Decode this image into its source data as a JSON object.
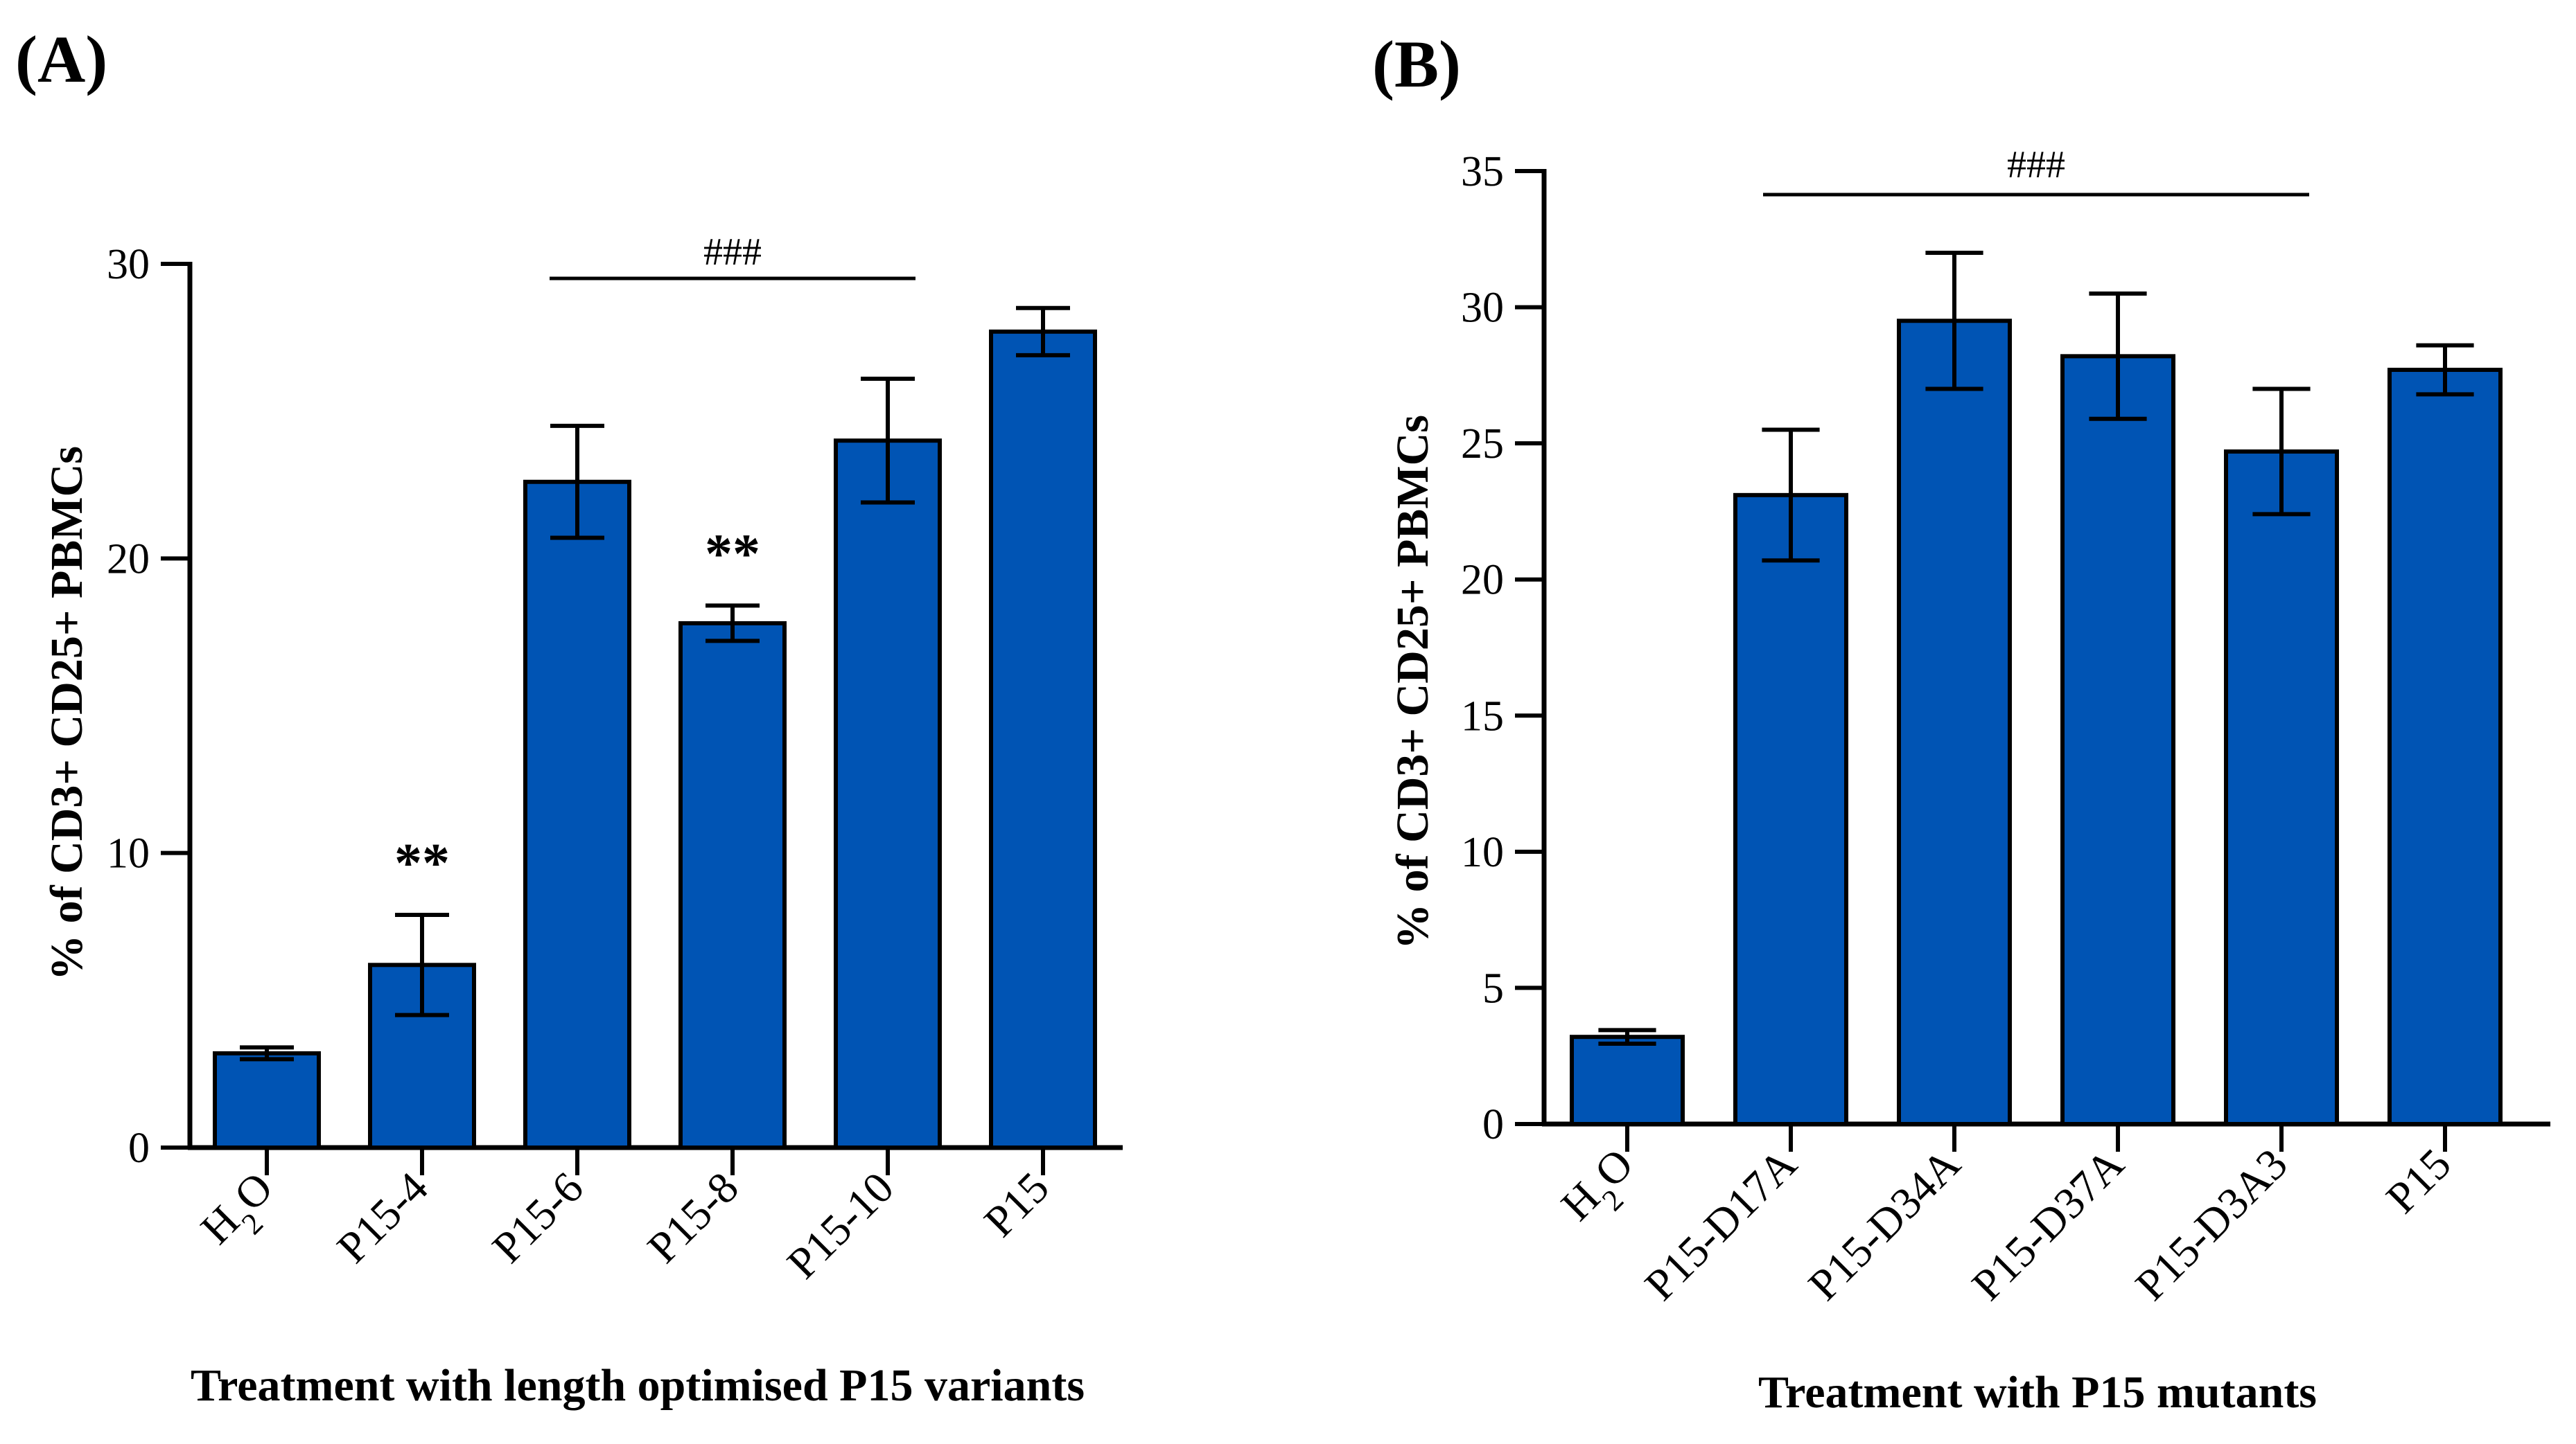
{
  "chart_data": [
    {
      "panel": "(A)",
      "type": "bar",
      "categories": [
        "H2O",
        "P15-4",
        "P15-6",
        "P15-8",
        "P15-10",
        "P15"
      ],
      "categories_sub": [
        [
          "H",
          "2",
          "O"
        ],
        null,
        null,
        null,
        null,
        null
      ],
      "values": [
        3.2,
        6.2,
        22.6,
        17.8,
        24.0,
        27.7
      ],
      "errors": [
        0.2,
        1.7,
        1.9,
        0.6,
        2.1,
        0.8
      ],
      "annotations": [
        null,
        "**",
        null,
        "**",
        null,
        null
      ],
      "significance": {
        "label": "###",
        "from": 2,
        "to": 4
      },
      "ylim": [
        0,
        30
      ],
      "yticks": [
        0,
        10,
        20,
        30
      ],
      "ylabel": "%  of CD3+ CD25+ PBMCs",
      "xlabel": "Treatment with length optimised P15 variants",
      "color": "#0054b4"
    },
    {
      "panel": "(B)",
      "type": "bar",
      "categories": [
        "H2O",
        "P15-D17A",
        "P15-D34A",
        "P15-D37A",
        "P15-D3A3",
        "P15"
      ],
      "categories_sub": [
        [
          "H",
          "2",
          "O"
        ],
        null,
        null,
        null,
        null,
        null
      ],
      "values": [
        3.2,
        23.1,
        29.5,
        28.2,
        24.7,
        27.7
      ],
      "errors": [
        0.25,
        2.4,
        2.5,
        2.3,
        2.3,
        0.9
      ],
      "annotations": [
        null,
        null,
        null,
        null,
        null,
        null
      ],
      "significance": {
        "label": "###",
        "from": 1,
        "to": 4
      },
      "ylim": [
        0,
        35
      ],
      "yticks": [
        0,
        5,
        10,
        15,
        20,
        25,
        30,
        35
      ],
      "ylabel": "%  of CD3+ CD25+ PBMCs",
      "xlabel": "Treatment with P15 mutants",
      "color": "#0054b4"
    }
  ]
}
